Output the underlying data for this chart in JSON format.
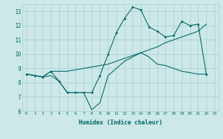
{
  "xlabel": "Humidex (Indice chaleur)",
  "bg_color": "#cce8e8",
  "grid_color": "#aacccc",
  "line_color": "#006666",
  "xlim": [
    -0.5,
    23.5
  ],
  "ylim": [
    6,
    13.5
  ],
  "xticks": [
    0,
    1,
    2,
    3,
    4,
    5,
    6,
    7,
    8,
    9,
    10,
    11,
    12,
    13,
    14,
    15,
    16,
    17,
    18,
    19,
    20,
    21,
    22,
    23
  ],
  "yticks": [
    6,
    7,
    8,
    9,
    10,
    11,
    12,
    13
  ],
  "series1_x": [
    0,
    1,
    2,
    3,
    4,
    5,
    6,
    7,
    8,
    9,
    10,
    11,
    12,
    13,
    14,
    15,
    16,
    17,
    18,
    19,
    20,
    21,
    22
  ],
  "series1_y": [
    8.6,
    8.5,
    8.4,
    8.8,
    8.1,
    7.3,
    7.3,
    7.3,
    7.3,
    8.5,
    10.0,
    11.5,
    12.5,
    13.3,
    13.1,
    11.9,
    11.6,
    11.2,
    11.3,
    12.3,
    12.0,
    12.1,
    8.6
  ],
  "series2_x": [
    0,
    1,
    2,
    3,
    4,
    5,
    6,
    7,
    8,
    9,
    10,
    11,
    12,
    13,
    14,
    15,
    16,
    17,
    18,
    19,
    20,
    21,
    22
  ],
  "series2_y": [
    8.6,
    8.5,
    8.4,
    8.8,
    8.8,
    8.8,
    8.9,
    9.0,
    9.1,
    9.2,
    9.3,
    9.5,
    9.7,
    9.9,
    10.1,
    10.3,
    10.5,
    10.8,
    11.0,
    11.2,
    11.4,
    11.6,
    12.1
  ],
  "series3_x": [
    0,
    1,
    2,
    3,
    4,
    5,
    6,
    7,
    8,
    9,
    10,
    11,
    12,
    13,
    14,
    15,
    16,
    17,
    18,
    19,
    20,
    21,
    22
  ],
  "series3_y": [
    8.6,
    8.5,
    8.4,
    8.5,
    8.1,
    7.3,
    7.3,
    7.3,
    6.1,
    6.6,
    8.5,
    9.0,
    9.5,
    9.8,
    10.1,
    9.8,
    9.3,
    9.2,
    9.0,
    8.8,
    8.7,
    8.6,
    8.6
  ]
}
